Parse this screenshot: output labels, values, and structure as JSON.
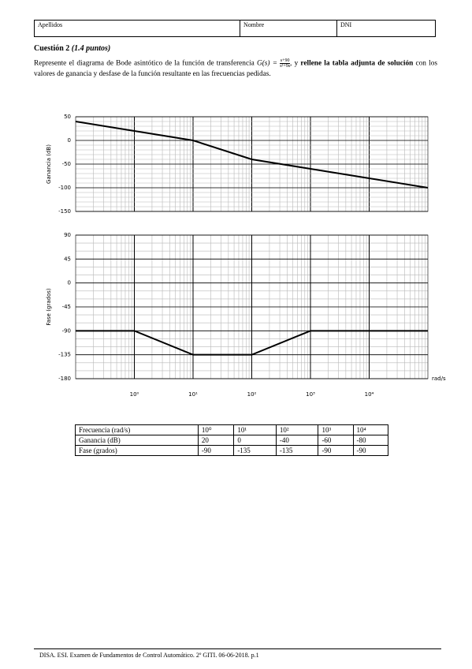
{
  "header": {
    "fields": [
      "Apellidos",
      "Nombre",
      "DNI"
    ]
  },
  "question": {
    "title": "Cuestión 2",
    "points": "(1.4 puntos)",
    "text_1": "Represente el diagrama de Bode asintótico de la función de transferencia",
    "formula_lhs": "G(s) =",
    "numerator": "s+90",
    "denominator": "s²+9s",
    "text_2": ", y",
    "text_bold": "rellene la tabla adjunta de solución",
    "text_3": "con los valores de ganancia y desfase de la función resultante en las frecuencias pedidas."
  },
  "chart_data": [
    {
      "type": "line",
      "y_label": "Ganancia (dB)",
      "log_x": true,
      "grid": true,
      "x": [
        0.1,
        1,
        10,
        100,
        1000,
        10000,
        100000
      ],
      "xlim": [
        0.1,
        100000
      ],
      "ylim": [
        -150,
        50
      ],
      "yticks": [
        -150,
        -100,
        -50,
        0,
        50
      ],
      "series": [
        {
          "color": "#000000",
          "values": [
            40,
            20,
            0,
            -40,
            -60,
            -80,
            -100
          ]
        }
      ]
    },
    {
      "type": "line",
      "y_label": "Fase (grados)",
      "x_label": "rad/s",
      "log_x": true,
      "grid": true,
      "x": [
        0.1,
        1,
        10,
        100,
        1000,
        10000,
        100000
      ],
      "xlim": [
        0.1,
        100000
      ],
      "ylim": [
        -180,
        90
      ],
      "yticks": [
        -180,
        -135,
        -90,
        -45,
        0,
        45,
        90
      ],
      "xticks": [
        {
          "value": 1,
          "label": "10⁰"
        },
        {
          "value": 10,
          "label": "10¹"
        },
        {
          "value": 100,
          "label": "10²"
        },
        {
          "value": 1000,
          "label": "10³"
        },
        {
          "value": 10000,
          "label": "10⁴"
        }
      ],
      "series": [
        {
          "color": "#000000",
          "values": [
            -90,
            -90,
            -135,
            -135,
            -90,
            -90,
            -90
          ]
        }
      ]
    }
  ],
  "table": {
    "header": [
      "Frecuencia (rad/s)",
      "10⁰",
      "10¹",
      "10²",
      "10³",
      "10⁴"
    ],
    "rows": [
      [
        "Ganancia (dB)",
        20,
        0,
        -40,
        -60,
        -80
      ],
      [
        "Fase (grados)",
        -90,
        -135,
        -135,
        -90,
        -90
      ]
    ]
  },
  "footer": "DISA. ESI. Examen de Fundamentos de Control Automático. 2º GITI. 06-06-2018. p.1"
}
